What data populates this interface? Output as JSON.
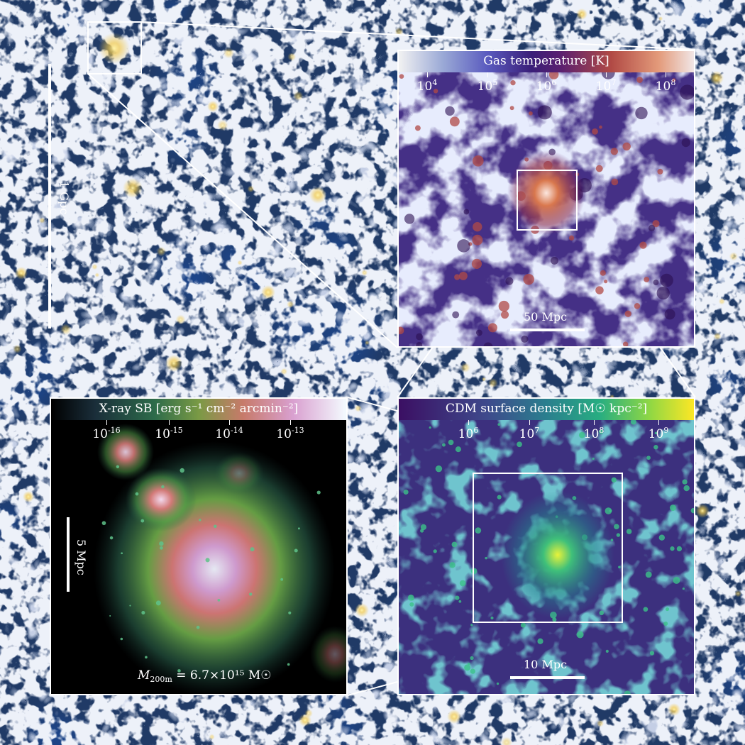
{
  "background": {
    "scale_label": "1 Gpc"
  },
  "panels": {
    "temperature": {
      "title": "Gas temperature [K]",
      "ticks": [
        "10",
        "10",
        "10",
        "10",
        "10"
      ],
      "exponents": [
        "4",
        "5",
        "6",
        "7",
        "8"
      ],
      "scale_label": "50 Mpc"
    },
    "dm": {
      "title": "CDM surface density [M☉ kpc⁻²]",
      "ticks": [
        "10",
        "10",
        "10",
        "10"
      ],
      "exponents": [
        "6",
        "7",
        "8",
        "9"
      ],
      "scale_label": "10 Mpc"
    },
    "xray": {
      "title": "X-ray SB [erg s⁻¹ cm⁻² arcmin⁻²]",
      "ticks": [
        "10",
        "10",
        "10",
        "10"
      ],
      "exponents": [
        "-16",
        "-15",
        "-14",
        "-13"
      ],
      "scale_label": "5 Mpc",
      "mass_symbol": "M",
      "mass_sub": "200m",
      "mass_value": " = 6.7×10¹⁵ M☉"
    }
  },
  "colors": {
    "frame": "#ffffff",
    "cosmic_web": "#dfe6f0",
    "cluster_glow": "#f2c94c",
    "void": "#1b3566"
  }
}
